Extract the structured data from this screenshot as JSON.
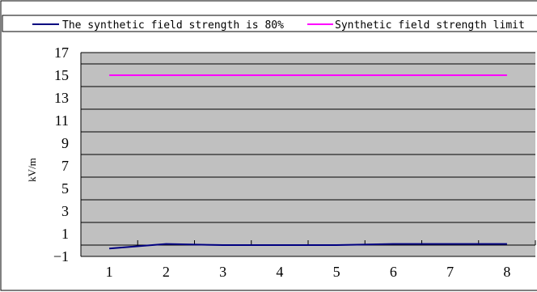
{
  "chart_data": {
    "type": "line",
    "x": [
      1,
      2,
      3,
      4,
      5,
      6,
      7,
      8
    ],
    "series": [
      {
        "name": "The synthetic field strength is 80%",
        "color": "#000080",
        "values": [
          -0.3,
          0.1,
          0.0,
          0.0,
          0.0,
          0.1,
          0.1,
          0.1
        ]
      },
      {
        "name": "Synthetic field strength limit",
        "color": "#FF00FF",
        "values": [
          15,
          15,
          15,
          15,
          15,
          15,
          15,
          15
        ]
      }
    ],
    "ylabel": "kV/m",
    "ylim": [
      -1,
      17
    ],
    "yticks": [
      -1,
      1,
      3,
      5,
      7,
      9,
      11,
      13,
      15,
      17
    ],
    "xticks": [
      1,
      2,
      3,
      4,
      5,
      6,
      7,
      8
    ],
    "grid": true,
    "legend_position": "top",
    "plot_background": "#C0C0C0"
  }
}
